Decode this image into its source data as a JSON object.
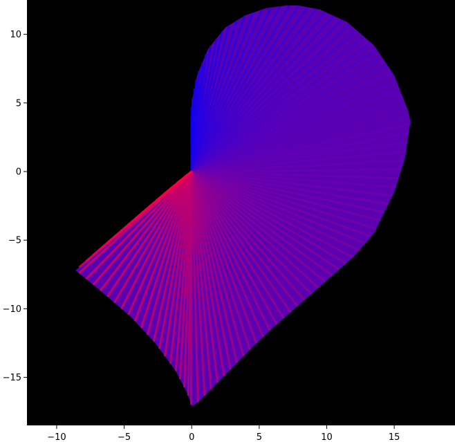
{
  "chart_data": {
    "type": "area",
    "title": "",
    "xlabel": "",
    "ylabel": "",
    "xlim": [
      -12.2,
      19.5
    ],
    "ylim": [
      -18.5,
      12.5
    ],
    "grid": false,
    "background_color": "#000000",
    "x_ticks": [
      -10,
      -5,
      0,
      5,
      10,
      15
    ],
    "y_ticks": [
      10,
      5,
      0,
      -5,
      -10,
      -15
    ],
    "x_tick_labels": [
      "−10",
      "−5",
      "0",
      "5",
      "10",
      "15"
    ],
    "y_tick_labels": [
      "10",
      "5",
      "0",
      "−5",
      "−10",
      "−15"
    ],
    "series": [
      {
        "color_start": "#ff0040",
        "color_end": "#0000ff",
        "lines": 120,
        "x": [
          0,
          0,
          0.4,
          1.2,
          2.5,
          4.0,
          5.5,
          7.0,
          7.9,
          9.5,
          11.5,
          13.5,
          15.0,
          16.0,
          16.2,
          15.8,
          15.0,
          13.5,
          12.0,
          10.5,
          9.0,
          7.5,
          6.0,
          4.5,
          3.0,
          2.0,
          1.2,
          0.6,
          0.2,
          0,
          -0.3,
          -1.2,
          -2.7,
          -4.5,
          -6.5,
          -8.6,
          -6.5,
          -4.5,
          -2.5,
          -0.8,
          0
        ],
        "y": [
          0,
          5.0,
          7.0,
          8.9,
          10.5,
          11.4,
          11.9,
          12.1,
          12.1,
          11.8,
          10.9,
          9.2,
          7.0,
          4.5,
          3.7,
          1.0,
          -1.5,
          -4.5,
          -6.2,
          -7.5,
          -8.8,
          -10.1,
          -11.4,
          -12.8,
          -14.3,
          -15.3,
          -16.1,
          -16.7,
          -17.0,
          -17.1,
          -16.2,
          -14.5,
          -12.5,
          -10.6,
          -8.9,
          -7.2,
          -5.4,
          -3.7,
          -2.0,
          -0.6,
          0
        ]
      }
    ]
  }
}
